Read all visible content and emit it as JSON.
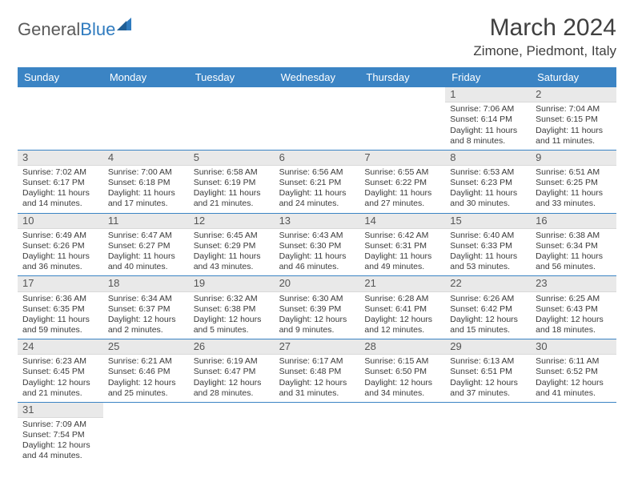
{
  "logo": {
    "text1": "General",
    "text2": "Blue"
  },
  "header": {
    "month_title": "March 2024",
    "location": "Zimone, Piedmont, Italy"
  },
  "theme": {
    "header_bg": "#3b84c4",
    "header_fg": "#ffffff",
    "daynum_bg": "#e9e9e9",
    "cell_border": "#3b84c4",
    "text_color": "#3a3a3a"
  },
  "weekdays": [
    "Sunday",
    "Monday",
    "Tuesday",
    "Wednesday",
    "Thursday",
    "Friday",
    "Saturday"
  ],
  "grid": {
    "leading_blanks": 5,
    "days": [
      {
        "n": "1",
        "sunrise": "Sunrise: 7:06 AM",
        "sunset": "Sunset: 6:14 PM",
        "daylight": "Daylight: 11 hours and 8 minutes."
      },
      {
        "n": "2",
        "sunrise": "Sunrise: 7:04 AM",
        "sunset": "Sunset: 6:15 PM",
        "daylight": "Daylight: 11 hours and 11 minutes."
      },
      {
        "n": "3",
        "sunrise": "Sunrise: 7:02 AM",
        "sunset": "Sunset: 6:17 PM",
        "daylight": "Daylight: 11 hours and 14 minutes."
      },
      {
        "n": "4",
        "sunrise": "Sunrise: 7:00 AM",
        "sunset": "Sunset: 6:18 PM",
        "daylight": "Daylight: 11 hours and 17 minutes."
      },
      {
        "n": "5",
        "sunrise": "Sunrise: 6:58 AM",
        "sunset": "Sunset: 6:19 PM",
        "daylight": "Daylight: 11 hours and 21 minutes."
      },
      {
        "n": "6",
        "sunrise": "Sunrise: 6:56 AM",
        "sunset": "Sunset: 6:21 PM",
        "daylight": "Daylight: 11 hours and 24 minutes."
      },
      {
        "n": "7",
        "sunrise": "Sunrise: 6:55 AM",
        "sunset": "Sunset: 6:22 PM",
        "daylight": "Daylight: 11 hours and 27 minutes."
      },
      {
        "n": "8",
        "sunrise": "Sunrise: 6:53 AM",
        "sunset": "Sunset: 6:23 PM",
        "daylight": "Daylight: 11 hours and 30 minutes."
      },
      {
        "n": "9",
        "sunrise": "Sunrise: 6:51 AM",
        "sunset": "Sunset: 6:25 PM",
        "daylight": "Daylight: 11 hours and 33 minutes."
      },
      {
        "n": "10",
        "sunrise": "Sunrise: 6:49 AM",
        "sunset": "Sunset: 6:26 PM",
        "daylight": "Daylight: 11 hours and 36 minutes."
      },
      {
        "n": "11",
        "sunrise": "Sunrise: 6:47 AM",
        "sunset": "Sunset: 6:27 PM",
        "daylight": "Daylight: 11 hours and 40 minutes."
      },
      {
        "n": "12",
        "sunrise": "Sunrise: 6:45 AM",
        "sunset": "Sunset: 6:29 PM",
        "daylight": "Daylight: 11 hours and 43 minutes."
      },
      {
        "n": "13",
        "sunrise": "Sunrise: 6:43 AM",
        "sunset": "Sunset: 6:30 PM",
        "daylight": "Daylight: 11 hours and 46 minutes."
      },
      {
        "n": "14",
        "sunrise": "Sunrise: 6:42 AM",
        "sunset": "Sunset: 6:31 PM",
        "daylight": "Daylight: 11 hours and 49 minutes."
      },
      {
        "n": "15",
        "sunrise": "Sunrise: 6:40 AM",
        "sunset": "Sunset: 6:33 PM",
        "daylight": "Daylight: 11 hours and 53 minutes."
      },
      {
        "n": "16",
        "sunrise": "Sunrise: 6:38 AM",
        "sunset": "Sunset: 6:34 PM",
        "daylight": "Daylight: 11 hours and 56 minutes."
      },
      {
        "n": "17",
        "sunrise": "Sunrise: 6:36 AM",
        "sunset": "Sunset: 6:35 PM",
        "daylight": "Daylight: 11 hours and 59 minutes."
      },
      {
        "n": "18",
        "sunrise": "Sunrise: 6:34 AM",
        "sunset": "Sunset: 6:37 PM",
        "daylight": "Daylight: 12 hours and 2 minutes."
      },
      {
        "n": "19",
        "sunrise": "Sunrise: 6:32 AM",
        "sunset": "Sunset: 6:38 PM",
        "daylight": "Daylight: 12 hours and 5 minutes."
      },
      {
        "n": "20",
        "sunrise": "Sunrise: 6:30 AM",
        "sunset": "Sunset: 6:39 PM",
        "daylight": "Daylight: 12 hours and 9 minutes."
      },
      {
        "n": "21",
        "sunrise": "Sunrise: 6:28 AM",
        "sunset": "Sunset: 6:41 PM",
        "daylight": "Daylight: 12 hours and 12 minutes."
      },
      {
        "n": "22",
        "sunrise": "Sunrise: 6:26 AM",
        "sunset": "Sunset: 6:42 PM",
        "daylight": "Daylight: 12 hours and 15 minutes."
      },
      {
        "n": "23",
        "sunrise": "Sunrise: 6:25 AM",
        "sunset": "Sunset: 6:43 PM",
        "daylight": "Daylight: 12 hours and 18 minutes."
      },
      {
        "n": "24",
        "sunrise": "Sunrise: 6:23 AM",
        "sunset": "Sunset: 6:45 PM",
        "daylight": "Daylight: 12 hours and 21 minutes."
      },
      {
        "n": "25",
        "sunrise": "Sunrise: 6:21 AM",
        "sunset": "Sunset: 6:46 PM",
        "daylight": "Daylight: 12 hours and 25 minutes."
      },
      {
        "n": "26",
        "sunrise": "Sunrise: 6:19 AM",
        "sunset": "Sunset: 6:47 PM",
        "daylight": "Daylight: 12 hours and 28 minutes."
      },
      {
        "n": "27",
        "sunrise": "Sunrise: 6:17 AM",
        "sunset": "Sunset: 6:48 PM",
        "daylight": "Daylight: 12 hours and 31 minutes."
      },
      {
        "n": "28",
        "sunrise": "Sunrise: 6:15 AM",
        "sunset": "Sunset: 6:50 PM",
        "daylight": "Daylight: 12 hours and 34 minutes."
      },
      {
        "n": "29",
        "sunrise": "Sunrise: 6:13 AM",
        "sunset": "Sunset: 6:51 PM",
        "daylight": "Daylight: 12 hours and 37 minutes."
      },
      {
        "n": "30",
        "sunrise": "Sunrise: 6:11 AM",
        "sunset": "Sunset: 6:52 PM",
        "daylight": "Daylight: 12 hours and 41 minutes."
      },
      {
        "n": "31",
        "sunrise": "Sunrise: 7:09 AM",
        "sunset": "Sunset: 7:54 PM",
        "daylight": "Daylight: 12 hours and 44 minutes."
      }
    ]
  }
}
